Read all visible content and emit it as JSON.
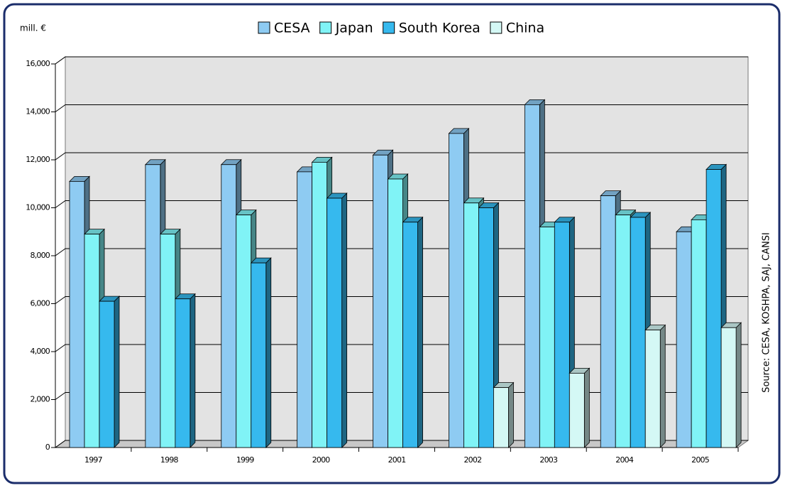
{
  "chart_data": {
    "type": "bar3d",
    "y_label": "mill. €",
    "source": "Source: CESA, KOSHPA, SAJ, CANSI",
    "categories": [
      "1997",
      "1998",
      "1999",
      "2000",
      "2001",
      "2002",
      "2003",
      "2004",
      "2005"
    ],
    "series": [
      {
        "name": "CESA",
        "color": "#8ecbf2",
        "values": [
          11100,
          11800,
          11800,
          11500,
          12200,
          13100,
          14300,
          10500,
          9000
        ]
      },
      {
        "name": "Japan",
        "color": "#80f3f6",
        "values": [
          8900,
          8900,
          9700,
          11900,
          11200,
          10200,
          9200,
          9700,
          9500
        ]
      },
      {
        "name": "South Korea",
        "color": "#36b9ee",
        "values": [
          6100,
          6200,
          7700,
          10400,
          9400,
          10000,
          9400,
          9600,
          11600
        ]
      },
      {
        "name": "China",
        "color": "#d4f8f5",
        "values": [
          null,
          null,
          null,
          null,
          null,
          2500,
          3100,
          4900,
          5000
        ]
      }
    ],
    "ylim": [
      0,
      16000
    ],
    "yticks": [
      0,
      {
        "value": 2000,
        "label": "2,000"
      },
      {
        "value": 4000,
        "label": "4,000"
      },
      {
        "value": 6000,
        "label": "6,000"
      },
      {
        "value": 8000,
        "label": "8,000"
      },
      {
        "value": 10000,
        "label": "10,000"
      },
      {
        "value": 12000,
        "label": "12,000"
      },
      {
        "value": 14000,
        "label": "14,000"
      },
      {
        "value": 16000,
        "label": "16,000"
      }
    ],
    "grid": true
  }
}
